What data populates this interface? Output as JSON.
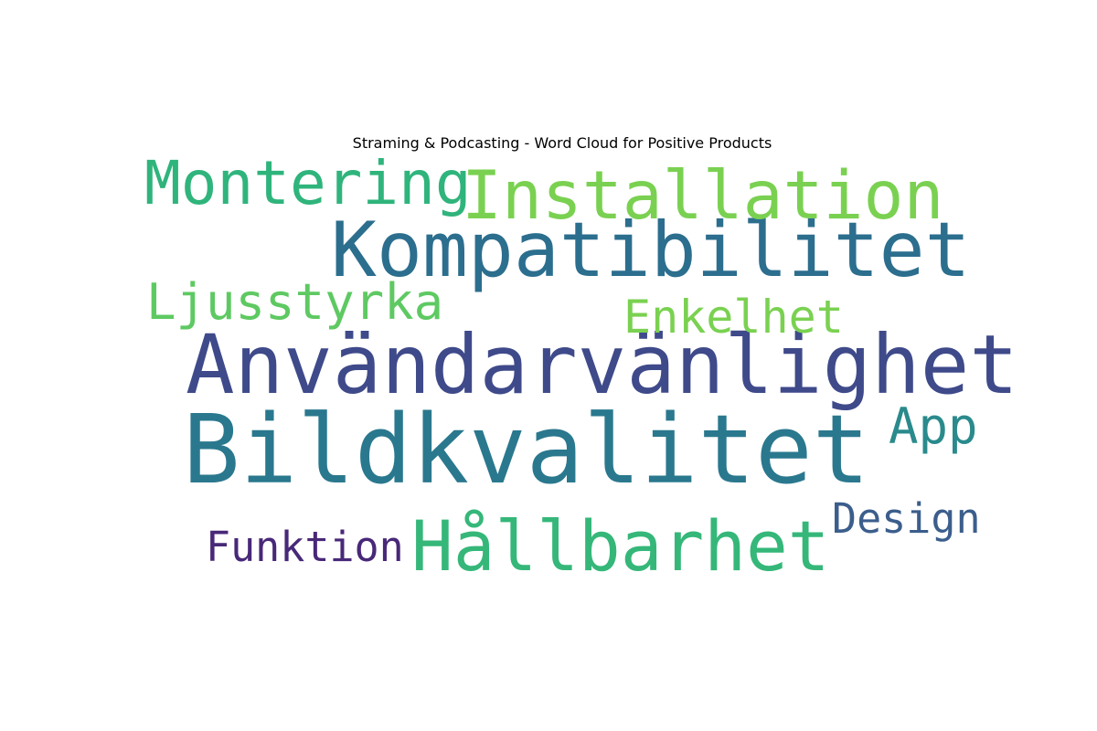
{
  "chart_data": {
    "type": "wordcloud",
    "title": "Straming & Podcasting - Word Cloud for Positive Products",
    "words": [
      {
        "text": "Bildkvalitet",
        "weight": 100,
        "color": "#2a788e"
      },
      {
        "text": "Användarvänlighet",
        "weight": 86,
        "color": "#3f4a8a"
      },
      {
        "text": "Kompatibilitet",
        "weight": 80,
        "color": "#2c6e8e"
      },
      {
        "text": "Hållbarhet",
        "weight": 73,
        "color": "#35b779"
      },
      {
        "text": "Installation",
        "weight": 70,
        "color": "#7ad151"
      },
      {
        "text": "Montering",
        "weight": 63,
        "color": "#2fb47c"
      },
      {
        "text": "Ljusstyrka",
        "weight": 52,
        "color": "#5ec962"
      },
      {
        "text": "App",
        "weight": 52,
        "color": "#2a8a8c"
      },
      {
        "text": "Enkelhet",
        "weight": 48,
        "color": "#7ad151"
      },
      {
        "text": "Funktion",
        "weight": 43,
        "color": "#482878"
      },
      {
        "text": "Design",
        "weight": 43,
        "color": "#3b5e8c"
      }
    ]
  }
}
